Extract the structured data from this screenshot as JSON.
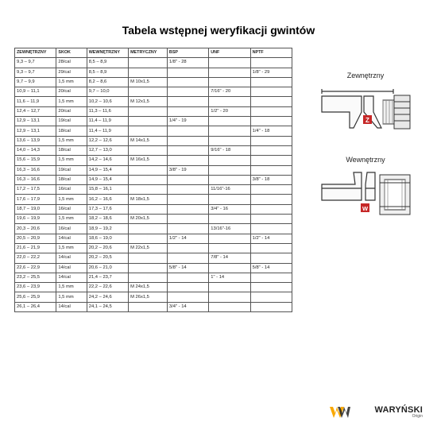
{
  "title": "Tabela wstępnej weryfikacji gwintów",
  "headers": [
    "ZEWNĘTRZNY",
    "SKOK",
    "WEWNĘTRZNY",
    "METRYCZNY",
    "BSP",
    "UNF",
    "NPTF"
  ],
  "rows": [
    [
      "9,3 – 9,7",
      "28/cal",
      "8,5 – 8,9",
      "",
      "1/8\" - 28",
      "",
      ""
    ],
    [
      "9,3 – 9,7",
      "29/cal",
      "8,5 – 8,9",
      "",
      "",
      "",
      "1/8\" - 29"
    ],
    [
      "9,7 – 9,9",
      "1,5 mm",
      "8,2 – 8,6",
      "M 10x1,5",
      "",
      "",
      ""
    ],
    [
      "10,9 – 11,1",
      "20/cal",
      "9,7 – 10,0",
      "",
      "",
      "7/16\" - 20",
      ""
    ],
    [
      "11,6 – 11,9",
      "1,5 mm",
      "10,2 – 10,6",
      "M 12x1,5",
      "",
      "",
      ""
    ],
    [
      "12,4 – 12,7",
      "20/cal",
      "11,3 – 11,6",
      "",
      "",
      "1/2\" - 20",
      ""
    ],
    [
      "12,9 – 13,1",
      "19/cal",
      "11,4 – 11,9",
      "",
      "1/4\" - 19",
      "",
      ""
    ],
    [
      "12,9 – 13,1",
      "18/cal",
      "11,4 – 11,9",
      "",
      "",
      "",
      "1/4\" - 18"
    ],
    [
      "13,6 – 13,9",
      "1,5 mm",
      "12,2 – 12,6",
      "M 14x1,5",
      "",
      "",
      ""
    ],
    [
      "14,0 – 14,3",
      "18/cal",
      "12,7 – 13,0",
      "",
      "",
      "9/16\" - 18",
      ""
    ],
    [
      "15,6 – 15,9",
      "1,5 mm",
      "14,2 – 14,6",
      "M 16x1,5",
      "",
      "",
      ""
    ],
    [
      "16,3 – 16,6",
      "19/cal",
      "14,9 – 15,4",
      "",
      "3/8\" - 19",
      "",
      ""
    ],
    [
      "16,3 – 16,6",
      "18/cal",
      "14,9 – 15,4",
      "",
      "",
      "",
      "3/8\" - 18"
    ],
    [
      "17,2 – 17,5",
      "16/cal",
      "15,8 – 16,1",
      "",
      "",
      "11/16\"-16",
      ""
    ],
    [
      "17,6 – 17,9",
      "1,5 mm",
      "16,2 – 16,6",
      "M 18x1,5",
      "",
      "",
      ""
    ],
    [
      "18,7 – 19,0",
      "16/cal",
      "17,3 – 17,6",
      "",
      "",
      "3/4\" - 16",
      ""
    ],
    [
      "19,6 – 19,9",
      "1,5 mm",
      "18,2 – 18,6",
      "M 20x1,5",
      "",
      "",
      ""
    ],
    [
      "20,3 – 20,6",
      "16/cal",
      "18,9 – 19,2",
      "",
      "",
      "13/16\"-16",
      ""
    ],
    [
      "20,5 – 20,9",
      "14/cal",
      "18,6 – 19,0",
      "",
      "1/2\" - 14",
      "",
      "1/2\" - 14"
    ],
    [
      "21,6 – 21,9",
      "1,5 mm",
      "20,2 – 20,6",
      "M 22x1,5",
      "",
      "",
      ""
    ],
    [
      "22,0 – 22,2",
      "14/cal",
      "20,2 – 20,5",
      "",
      "",
      "7/8\" - 14",
      ""
    ],
    [
      "22,6 – 22,9",
      "14/cal",
      "20,6 – 21,0",
      "",
      "5/8\" - 14",
      "",
      "5/8\" - 14"
    ],
    [
      "23,2 – 25,5",
      "14/cal",
      "21,4 – 23,7",
      "",
      "",
      "1\" - 14",
      ""
    ],
    [
      "23,6 – 23,9",
      "1,5 mm",
      "22,2 – 22,6",
      "M 24x1,5",
      "",
      "",
      ""
    ],
    [
      "25,6 – 25,9",
      "1,5 mm",
      "24,2 – 24,6",
      "M 26x1,5",
      "",
      "",
      ""
    ],
    [
      "26,1 – 26,4",
      "14/cal",
      "24,1 – 24,5",
      "",
      "3/4\" - 14",
      "",
      ""
    ]
  ],
  "diagrams": {
    "outer": {
      "label": "Zewnętrzny",
      "badge": "Z",
      "badge_color": "#c62828"
    },
    "inner": {
      "label": "Wewnętrzny",
      "badge": "W",
      "badge_color": "#c62828"
    }
  },
  "logo": {
    "name": "WARYŃSKI",
    "sub": "Origin",
    "mark_color": "#f9a800"
  },
  "colors": {
    "border": "#555",
    "text": "#222",
    "bg": "#ffffff"
  }
}
